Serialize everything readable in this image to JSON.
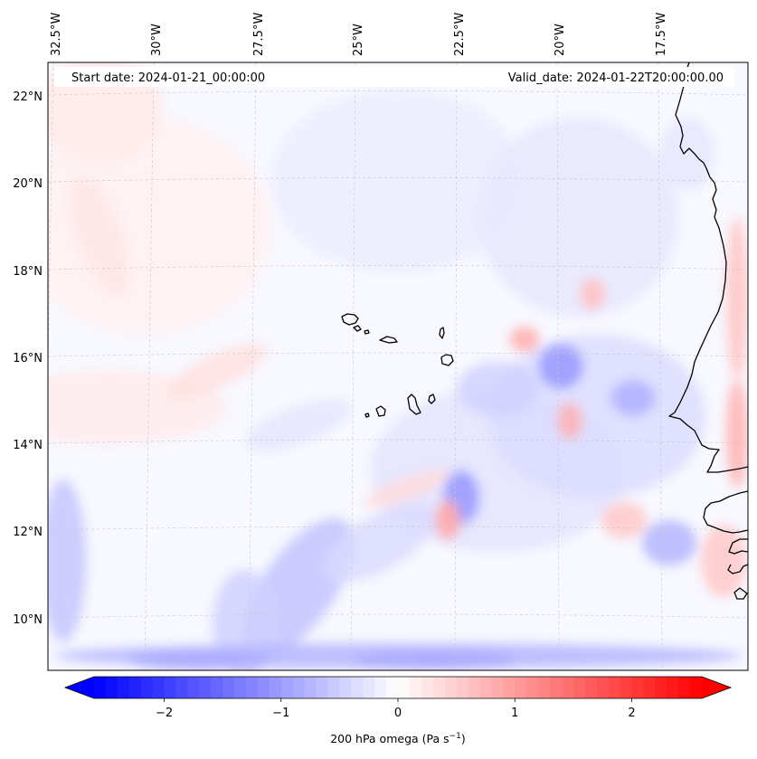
{
  "header": {
    "start_date": "Start date: 2024-01-21_00:00:00",
    "valid_date": "Valid_date: 2024-01-22T20:00:00.00"
  },
  "map": {
    "longitude_labels": [
      "32.5°W",
      "30°W",
      "27.5°W",
      "25°W",
      "22.5°W",
      "20°W",
      "17.5°W"
    ],
    "latitude_labels": [
      "22°N",
      "20°N",
      "18°N",
      "16°N",
      "14°N",
      "12°N",
      "10°N"
    ],
    "gridlines": "dashed",
    "colors": {
      "background": "#f8f8ff",
      "coastline": "#000000",
      "gridline": "#c8c8c8"
    }
  },
  "colorbar": {
    "label": "200 hPa omega (Pa s",
    "label_sup": "−1",
    "label_end": ")",
    "ticks": [
      "−2",
      "−1",
      "0",
      "1",
      "2"
    ],
    "tick_values": [
      -2,
      -1,
      0,
      1,
      2
    ],
    "range": [
      -2.6,
      2.6
    ],
    "extend": "both",
    "colormap": "bwr",
    "colors": {
      "min": "#0000ff",
      "mid": "#ffffff",
      "max": "#ff0000"
    }
  }
}
